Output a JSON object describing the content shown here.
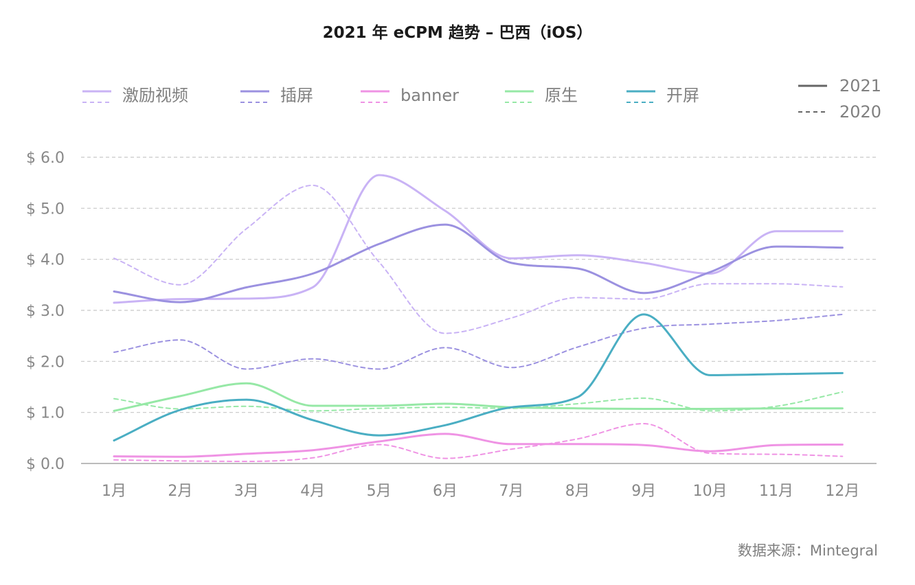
{
  "title": "2021 年 eCPM 趋势 – 巴西（iOS）",
  "source": "数据来源：Mintegral",
  "colors": {
    "激励视频": "#c9b3f5",
    "插屏": "#9b91e0",
    "banner": "#ef93e4",
    "原生": "#96e8a6",
    "开屏": "#4aaec3",
    "grid": "#c8c8c8",
    "axis": "#bbbbbb",
    "year_line": "#666666"
  },
  "year_legend": [
    "2021",
    "2020"
  ],
  "chart_data": {
    "type": "line",
    "title": "2021 年 eCPM 趋势 – 巴西（iOS）",
    "xlabel": "",
    "ylabel": "",
    "categories": [
      "1月",
      "2月",
      "3月",
      "4月",
      "5月",
      "6月",
      "7月",
      "8月",
      "9月",
      "10月",
      "11月",
      "12月"
    ],
    "yticks": [
      "$ 0.0",
      "$ 1.0",
      "$ 2.0",
      "$ 3.0",
      "$ 4.0",
      "$ 5.0",
      "$ 6.0"
    ],
    "ylim": [
      0,
      6
    ],
    "grid": true,
    "legend_position": "top",
    "series": [
      {
        "name": "激励视频",
        "year": "2021",
        "values": [
          3.15,
          3.22,
          3.23,
          3.45,
          5.65,
          4.95,
          4.02,
          4.08,
          3.93,
          3.72,
          4.55,
          4.55
        ]
      },
      {
        "name": "激励视频",
        "year": "2020",
        "values": [
          4.02,
          3.5,
          4.6,
          5.45,
          3.95,
          2.55,
          2.85,
          3.25,
          3.22,
          3.52,
          3.52,
          3.46
        ]
      },
      {
        "name": "插屏",
        "year": "2021",
        "values": [
          3.37,
          3.16,
          3.45,
          3.72,
          4.3,
          4.68,
          3.93,
          3.82,
          3.34,
          3.75,
          4.25,
          4.23
        ]
      },
      {
        "name": "插屏",
        "year": "2020",
        "values": [
          2.18,
          2.42,
          1.85,
          2.05,
          1.85,
          2.27,
          1.88,
          2.28,
          2.65,
          2.73,
          2.8,
          2.92
        ]
      },
      {
        "name": "banner",
        "year": "2021",
        "values": [
          0.14,
          0.13,
          0.19,
          0.26,
          0.43,
          0.58,
          0.38,
          0.38,
          0.36,
          0.24,
          0.36,
          0.37
        ]
      },
      {
        "name": "banner",
        "year": "2020",
        "values": [
          0.07,
          0.05,
          0.04,
          0.11,
          0.37,
          0.1,
          0.28,
          0.48,
          0.78,
          0.2,
          0.18,
          0.14
        ]
      },
      {
        "name": "原生",
        "year": "2021",
        "values": [
          1.03,
          1.32,
          1.57,
          1.13,
          1.13,
          1.17,
          1.1,
          1.08,
          1.07,
          1.07,
          1.08,
          1.08
        ]
      },
      {
        "name": "原生",
        "year": "2020",
        "values": [
          1.27,
          1.07,
          1.12,
          1.03,
          1.08,
          1.1,
          1.08,
          1.17,
          1.28,
          1.03,
          1.12,
          1.4
        ]
      },
      {
        "name": "开屏",
        "year": "2021",
        "values": [
          0.45,
          1.05,
          1.25,
          0.85,
          0.55,
          0.75,
          1.1,
          1.3,
          2.92,
          1.73,
          1.75,
          1.77
        ]
      }
    ]
  }
}
